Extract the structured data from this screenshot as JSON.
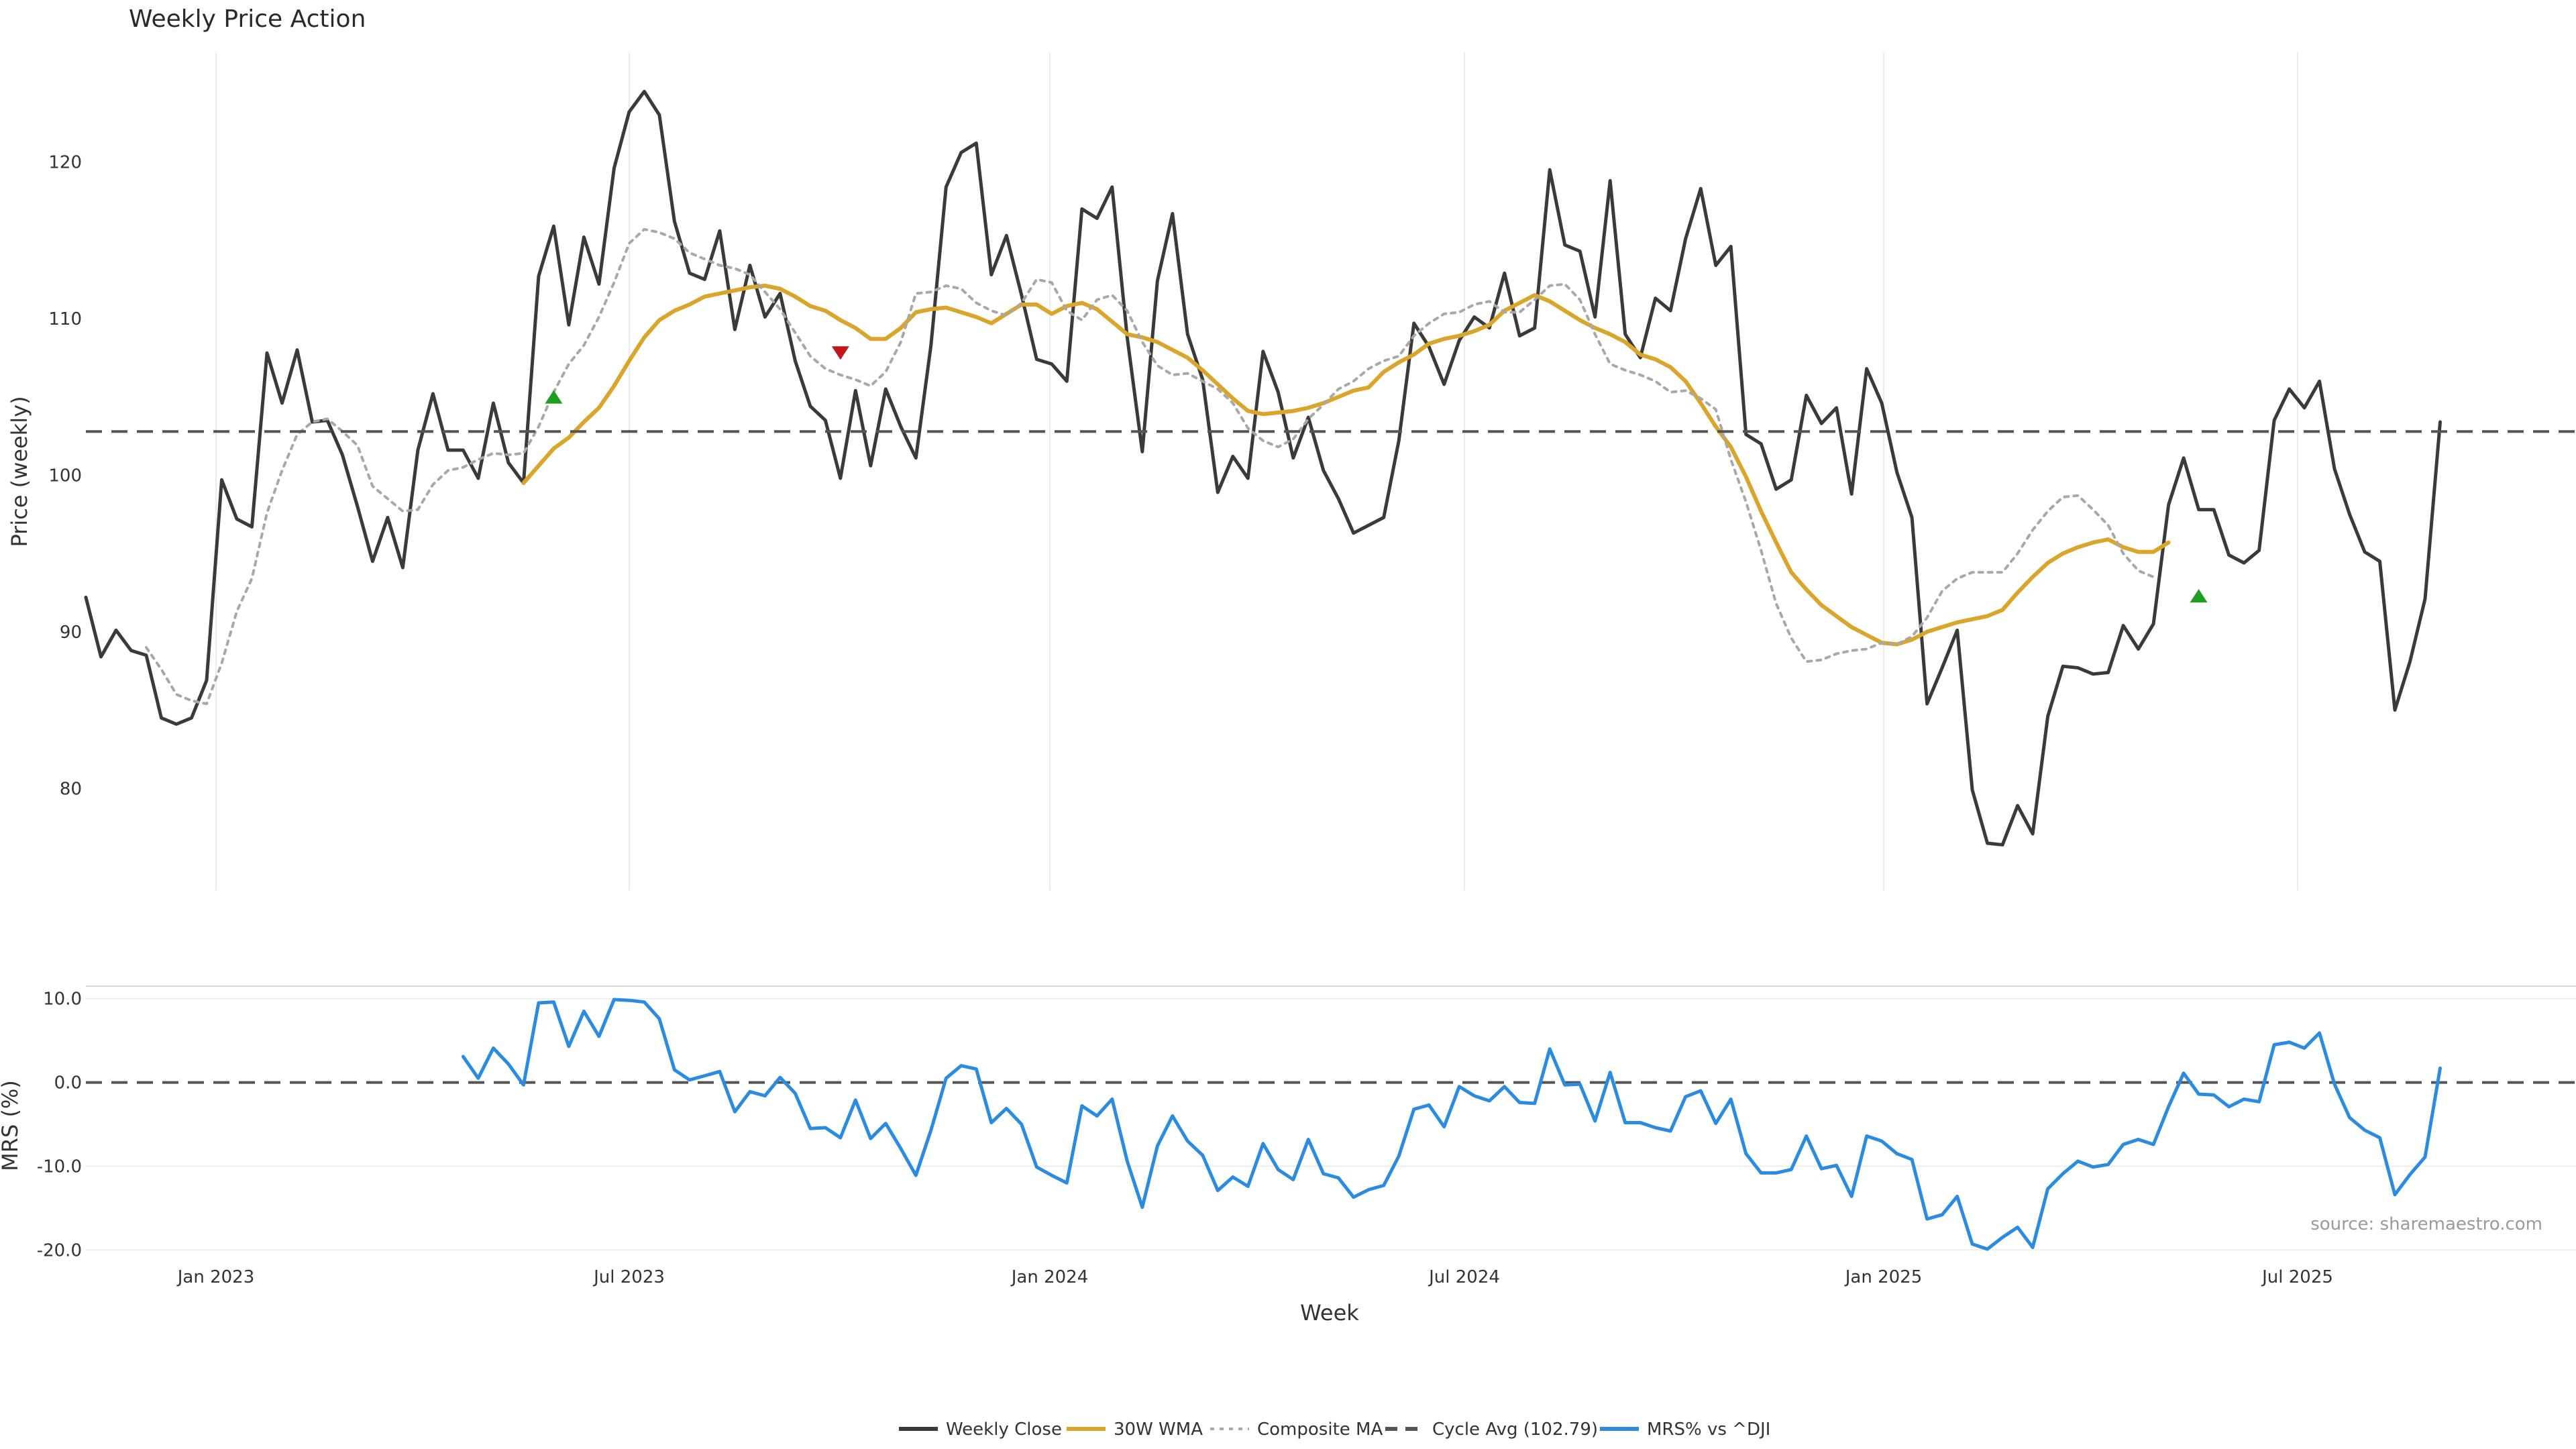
{
  "chart_data": {
    "type": "line",
    "title": "Weekly Price Action",
    "xlabel": "Week",
    "source": "source: sharemaestro.com",
    "x_ticks": [
      "Jan 2023",
      "Jul 2023",
      "Jan 2024",
      "Jul 2024",
      "Jan 2025",
      "Jul 2025"
    ],
    "price_panel": {
      "ylabel": "Price (weekly)",
      "ylim": [
        73.5,
        127
      ],
      "y_ticks": [
        "80",
        "90",
        "100",
        "110",
        "120"
      ],
      "cycle_avg": 102.79,
      "series": [
        {
          "name": "Weekly Close",
          "color": "#3a3a3a",
          "style": "solid",
          "start_index": 0,
          "values": [
            92.2,
            88.4,
            90.1,
            88.8,
            88.5,
            84.5,
            84.1,
            84.5,
            86.9,
            99.7,
            97.2,
            96.7,
            107.8,
            104.6,
            108.0,
            103.4,
            103.5,
            101.3,
            98.0,
            94.5,
            97.3,
            94.1,
            101.6,
            105.2,
            101.6,
            101.6,
            99.8,
            104.6,
            100.8,
            99.5,
            112.7,
            115.9,
            109.6,
            115.2,
            112.2,
            119.6,
            123.2,
            124.5,
            123.0,
            116.2,
            112.9,
            112.5,
            115.6,
            109.3,
            113.4,
            110.1,
            111.6,
            107.3,
            104.4,
            103.5,
            99.8,
            105.4,
            100.6,
            105.5,
            103.1,
            101.1,
            108.3,
            118.4,
            120.6,
            121.2,
            112.8,
            115.3,
            111.5,
            107.4,
            107.1,
            106.0,
            117.0,
            116.4,
            118.4,
            108.8,
            101.5,
            112.4,
            116.7,
            109.0,
            106.1,
            98.9,
            101.2,
            99.8,
            107.9,
            105.3,
            101.1,
            103.7,
            100.3,
            98.5,
            96.3,
            96.8,
            97.3,
            102.2,
            109.7,
            108.2,
            105.8,
            108.6,
            110.1,
            109.4,
            112.9,
            108.9,
            109.4,
            119.5,
            114.7,
            114.3,
            110.1,
            118.8,
            109.0,
            107.5,
            111.3,
            110.5,
            115.1,
            118.3,
            113.4,
            114.6,
            102.6,
            102.0,
            99.1,
            99.7,
            105.1,
            103.3,
            104.3,
            98.8,
            106.8,
            104.6,
            100.2,
            97.3,
            85.4,
            87.7,
            90.1,
            79.9,
            76.5,
            76.4,
            78.9,
            77.1,
            84.6,
            87.8,
            87.7,
            87.3,
            87.4,
            90.4,
            88.9,
            90.5,
            98.1,
            101.1,
            97.8,
            97.8,
            94.9,
            94.4,
            95.2,
            103.5,
            105.5,
            104.3,
            106.0,
            100.4,
            97.5,
            95.1,
            94.5,
            85.0,
            88.1,
            92.1,
            103.4
          ]
        },
        {
          "name": "30W WMA",
          "color": "#d9a52b",
          "style": "solid",
          "start_index": 29,
          "values": [
            99.5,
            100.6,
            101.7,
            102.4,
            103.4,
            104.3,
            105.7,
            107.3,
            108.8,
            109.9,
            110.5,
            110.9,
            111.4,
            111.6,
            111.8,
            112.0,
            112.1,
            111.9,
            111.4,
            110.8,
            110.5,
            109.9,
            109.4,
            108.7,
            108.7,
            109.4,
            110.4,
            110.6,
            110.7,
            110.4,
            110.1,
            109.7,
            110.3,
            110.9,
            110.9,
            110.3,
            110.8,
            111.0,
            110.6,
            109.8,
            109.0,
            108.8,
            108.5,
            108.0,
            107.5,
            106.7,
            105.8,
            104.9,
            104.1,
            103.9,
            104.0,
            104.1,
            104.3,
            104.6,
            105.0,
            105.4,
            105.6,
            106.6,
            107.2,
            107.7,
            108.4,
            108.7,
            108.9,
            109.2,
            109.6,
            110.5,
            111.0,
            111.5,
            111.1,
            110.5,
            109.9,
            109.4,
            109.0,
            108.5,
            107.7,
            107.4,
            106.9,
            106.0,
            104.6,
            103.1,
            101.8,
            99.9,
            97.7,
            95.7,
            93.8,
            92.7,
            91.7,
            91.0,
            90.3,
            89.8,
            89.3,
            89.2,
            89.5,
            90.0,
            90.3,
            90.6,
            90.8,
            91.0,
            91.4,
            92.5,
            93.5,
            94.4,
            95.0,
            95.4,
            95.7,
            95.9,
            95.4,
            95.1,
            95.1,
            95.7
          ]
        },
        {
          "name": "Composite MA",
          "color": "#a8a8a8",
          "style": "dotted",
          "start_index": 4,
          "values": [
            89.0,
            87.6,
            86.0,
            85.6,
            85.4,
            88.0,
            91.3,
            93.4,
            97.6,
            100.3,
            102.6,
            103.4,
            103.6,
            102.8,
            101.9,
            99.3,
            98.5,
            97.7,
            97.8,
            99.4,
            100.3,
            100.5,
            101.0,
            101.4,
            101.3,
            101.4,
            103.1,
            105.3,
            107.1,
            108.3,
            110.1,
            112.3,
            114.8,
            115.7,
            115.5,
            115.1,
            114.2,
            113.8,
            113.4,
            113.2,
            112.8,
            111.7,
            110.6,
            109.1,
            107.6,
            106.8,
            106.4,
            106.1,
            105.7,
            106.6,
            108.5,
            111.6,
            111.7,
            112.1,
            111.9,
            111.0,
            110.5,
            110.2,
            111.0,
            112.5,
            112.3,
            110.5,
            109.9,
            111.2,
            111.5,
            110.5,
            108.5,
            107.0,
            106.4,
            106.5,
            106.0,
            105.5,
            104.6,
            103.0,
            102.2,
            101.8,
            102.3,
            103.6,
            104.5,
            105.5,
            106.0,
            106.8,
            107.3,
            107.6,
            108.9,
            109.7,
            110.3,
            110.4,
            110.9,
            111.1,
            110.4,
            110.4,
            111.2,
            112.1,
            112.2,
            111.2,
            109.0,
            107.1,
            106.7,
            106.4,
            106.0,
            105.3,
            105.4,
            104.9,
            104.2,
            101.0,
            98.3,
            95.2,
            91.8,
            89.6,
            88.1,
            88.2,
            88.6,
            88.8,
            88.9,
            89.3,
            89.2,
            89.7,
            90.9,
            92.6,
            93.4,
            93.8,
            93.8,
            93.8,
            95.0,
            96.5,
            97.7,
            98.6,
            98.7,
            97.8,
            96.8,
            95.0,
            93.9,
            93.5
          ]
        },
        {
          "name": "Cycle Avg (102.79)",
          "color": "#555555",
          "style": "dashed",
          "constant": 102.79
        }
      ],
      "markers": [
        {
          "type": "buy",
          "index": 31,
          "value": 105.0,
          "color": "#1e9e1e"
        },
        {
          "type": "sell",
          "index": 50,
          "value": 107.8,
          "color": "#c4161c"
        },
        {
          "type": "buy",
          "index": 140,
          "value": 92.3,
          "color": "#1e9e1e"
        }
      ]
    },
    "mrs_panel": {
      "ylabel": "MRS (%)",
      "ylim": [
        -20.3,
        11.5
      ],
      "y_ticks": [
        "10.0",
        "0.0",
        "-10.0",
        "-20.0"
      ],
      "zero_line": 0,
      "series": [
        {
          "name": "MRS% vs ^DJI",
          "color": "#2a8be0",
          "style": "solid",
          "start_index": 25,
          "values": [
            3.1,
            0.5,
            4.1,
            2.2,
            -0.3,
            9.5,
            9.6,
            4.3,
            8.5,
            5.5,
            9.9,
            9.8,
            9.6,
            7.6,
            1.5,
            0.3,
            0.8,
            1.3,
            -3.5,
            -1.1,
            -1.6,
            0.6,
            -1.3,
            -5.5,
            -5.4,
            -6.6,
            -2.1,
            -6.7,
            -4.9,
            -7.9,
            -11.1,
            -5.7,
            0.5,
            2.0,
            1.6,
            -4.8,
            -3.1,
            -5.0,
            -10.1,
            -11.1,
            -12.0,
            -2.8,
            -4.0,
            -2.0,
            -9.4,
            -14.9,
            -7.6,
            -4.0,
            -7.0,
            -8.7,
            -12.9,
            -11.3,
            -12.4,
            -7.3,
            -10.4,
            -11.6,
            -6.8,
            -10.9,
            -11.4,
            -13.7,
            -12.8,
            -12.3,
            -8.8,
            -3.2,
            -2.7,
            -5.3,
            -0.5,
            -1.6,
            -2.2,
            -0.5,
            -2.4,
            -2.5,
            4.0,
            -0.3,
            -0.2,
            -4.6,
            1.2,
            -4.8,
            -4.8,
            -5.4,
            -5.8,
            -1.7,
            -1.0,
            -4.9,
            -2.0,
            -8.5,
            -10.8,
            -10.8,
            -10.4,
            -6.4,
            -10.3,
            -9.9,
            -13.6,
            -6.4,
            -7.0,
            -8.5,
            -9.2,
            -16.3,
            -15.8,
            -13.6,
            -19.3,
            -19.9,
            -18.5,
            -17.3,
            -19.7,
            -12.7,
            -10.9,
            -9.4,
            -10.1,
            -9.8,
            -7.4,
            -6.8,
            -7.4,
            -2.9,
            1.1,
            -1.4,
            -1.5,
            -2.9,
            -2.0,
            -2.3,
            4.5,
            4.8,
            4.1,
            5.9,
            -0.2,
            -4.2,
            -5.7,
            -6.6,
            -13.4,
            -11.0,
            -8.9,
            1.7
          ]
        }
      ]
    },
    "legend": [
      "Weekly Close",
      "30W WMA",
      "Composite MA",
      "Cycle Avg (102.79)",
      "MRS% vs ^DJI"
    ]
  }
}
